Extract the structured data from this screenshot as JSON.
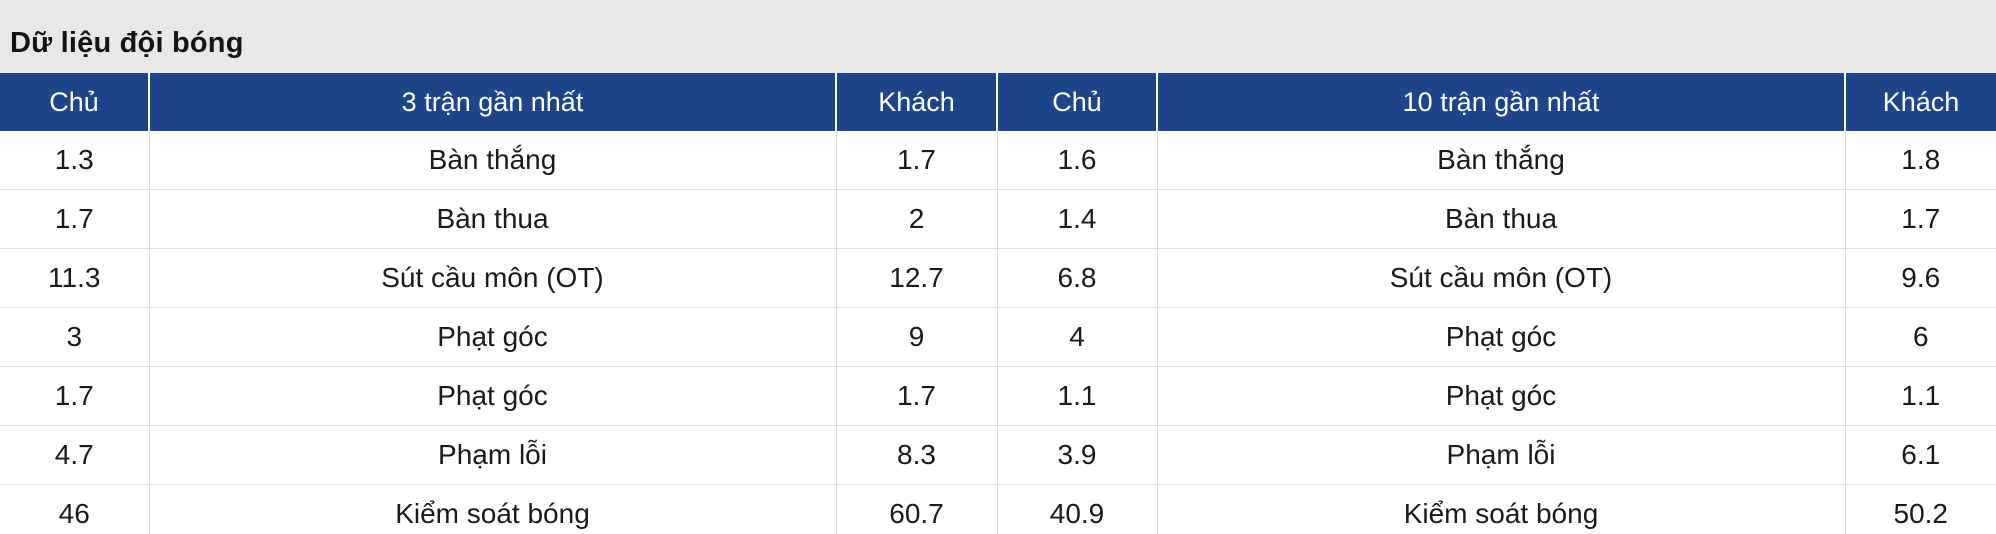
{
  "panel": {
    "title": "Dữ liệu đội bóng"
  },
  "table": {
    "headers": [
      "Chủ",
      "3 trận gần nhất",
      "Khách",
      "Chủ",
      "10 trận gần nhất",
      "Khách"
    ],
    "rows": [
      [
        "1.3",
        "Bàn thắng",
        "1.7",
        "1.6",
        "Bàn thắng",
        "1.8"
      ],
      [
        "1.7",
        "Bàn thua",
        "2",
        "1.4",
        "Bàn thua",
        "1.7"
      ],
      [
        "11.3",
        "Sút cầu môn (OT)",
        "12.7",
        "6.8",
        "Sút cầu môn (OT)",
        "9.6"
      ],
      [
        "3",
        "Phạt góc",
        "9",
        "4",
        "Phạt góc",
        "6"
      ],
      [
        "1.7",
        "Phạt góc",
        "1.7",
        "1.1",
        "Phạt góc",
        "1.1"
      ],
      [
        "4.7",
        "Phạm lỗi",
        "8.3",
        "3.9",
        "Phạm lỗi",
        "6.1"
      ],
      [
        "46",
        "Kiểm soát bóng",
        "60.7",
        "40.9",
        "Kiểm soát bóng",
        "50.2"
      ]
    ],
    "colors": {
      "header_bg": "#1E4489",
      "header_text": "#FFFFFF",
      "title_bar_bg": "#E8E8E8",
      "row_bg": "#FFFFFF",
      "cell_text": "#1A1A1A",
      "grid_line": "#DCDCDC"
    }
  }
}
